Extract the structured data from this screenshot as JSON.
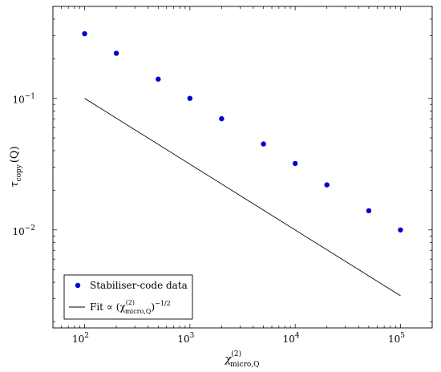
{
  "chart_data": {
    "type": "scatter",
    "xscale": "log",
    "yscale": "log",
    "xlim": [
      50,
      200000
    ],
    "ylim": [
      0.0018,
      0.5
    ],
    "xticks": [
      100,
      1000,
      10000,
      100000
    ],
    "xtick_labels": [
      {
        "base": "10",
        "exp": "2"
      },
      {
        "base": "10",
        "exp": "3"
      },
      {
        "base": "10",
        "exp": "4"
      },
      {
        "base": "10",
        "exp": "5"
      }
    ],
    "yticks": [
      0.01,
      0.1
    ],
    "ytick_labels": [
      {
        "base": "10",
        "exp": "−2"
      },
      {
        "base": "10",
        "exp": "−1"
      }
    ],
    "xlabel": {
      "main": "χ",
      "sup": "(2)",
      "sub": "micro,Q"
    },
    "ylabel": {
      "main": "τ",
      "sub": "copy",
      "rest": "(Q)"
    },
    "grid": false,
    "legend_position": "bottom-left",
    "series": [
      {
        "name": "Stabiliser-code data",
        "kind": "scatter",
        "color": "#0000cc",
        "x": [
          100,
          200,
          500,
          1000,
          2000,
          5000,
          10000,
          20000,
          50000,
          100000
        ],
        "y": [
          0.31,
          0.22,
          0.14,
          0.1,
          0.07,
          0.045,
          0.032,
          0.022,
          0.014,
          0.01
        ]
      },
      {
        "name": "Fit ∝ (χ(2)micro,Q)−1/2",
        "legend": {
          "prefix": "Fit ∝ (χ",
          "sup": "(2)",
          "sub": "micro,Q",
          "suffix": ")",
          "exp": "−1/2"
        },
        "kind": "line",
        "color": "#000000",
        "x": [
          100,
          100000
        ],
        "y": [
          0.1,
          0.00316
        ]
      }
    ]
  }
}
